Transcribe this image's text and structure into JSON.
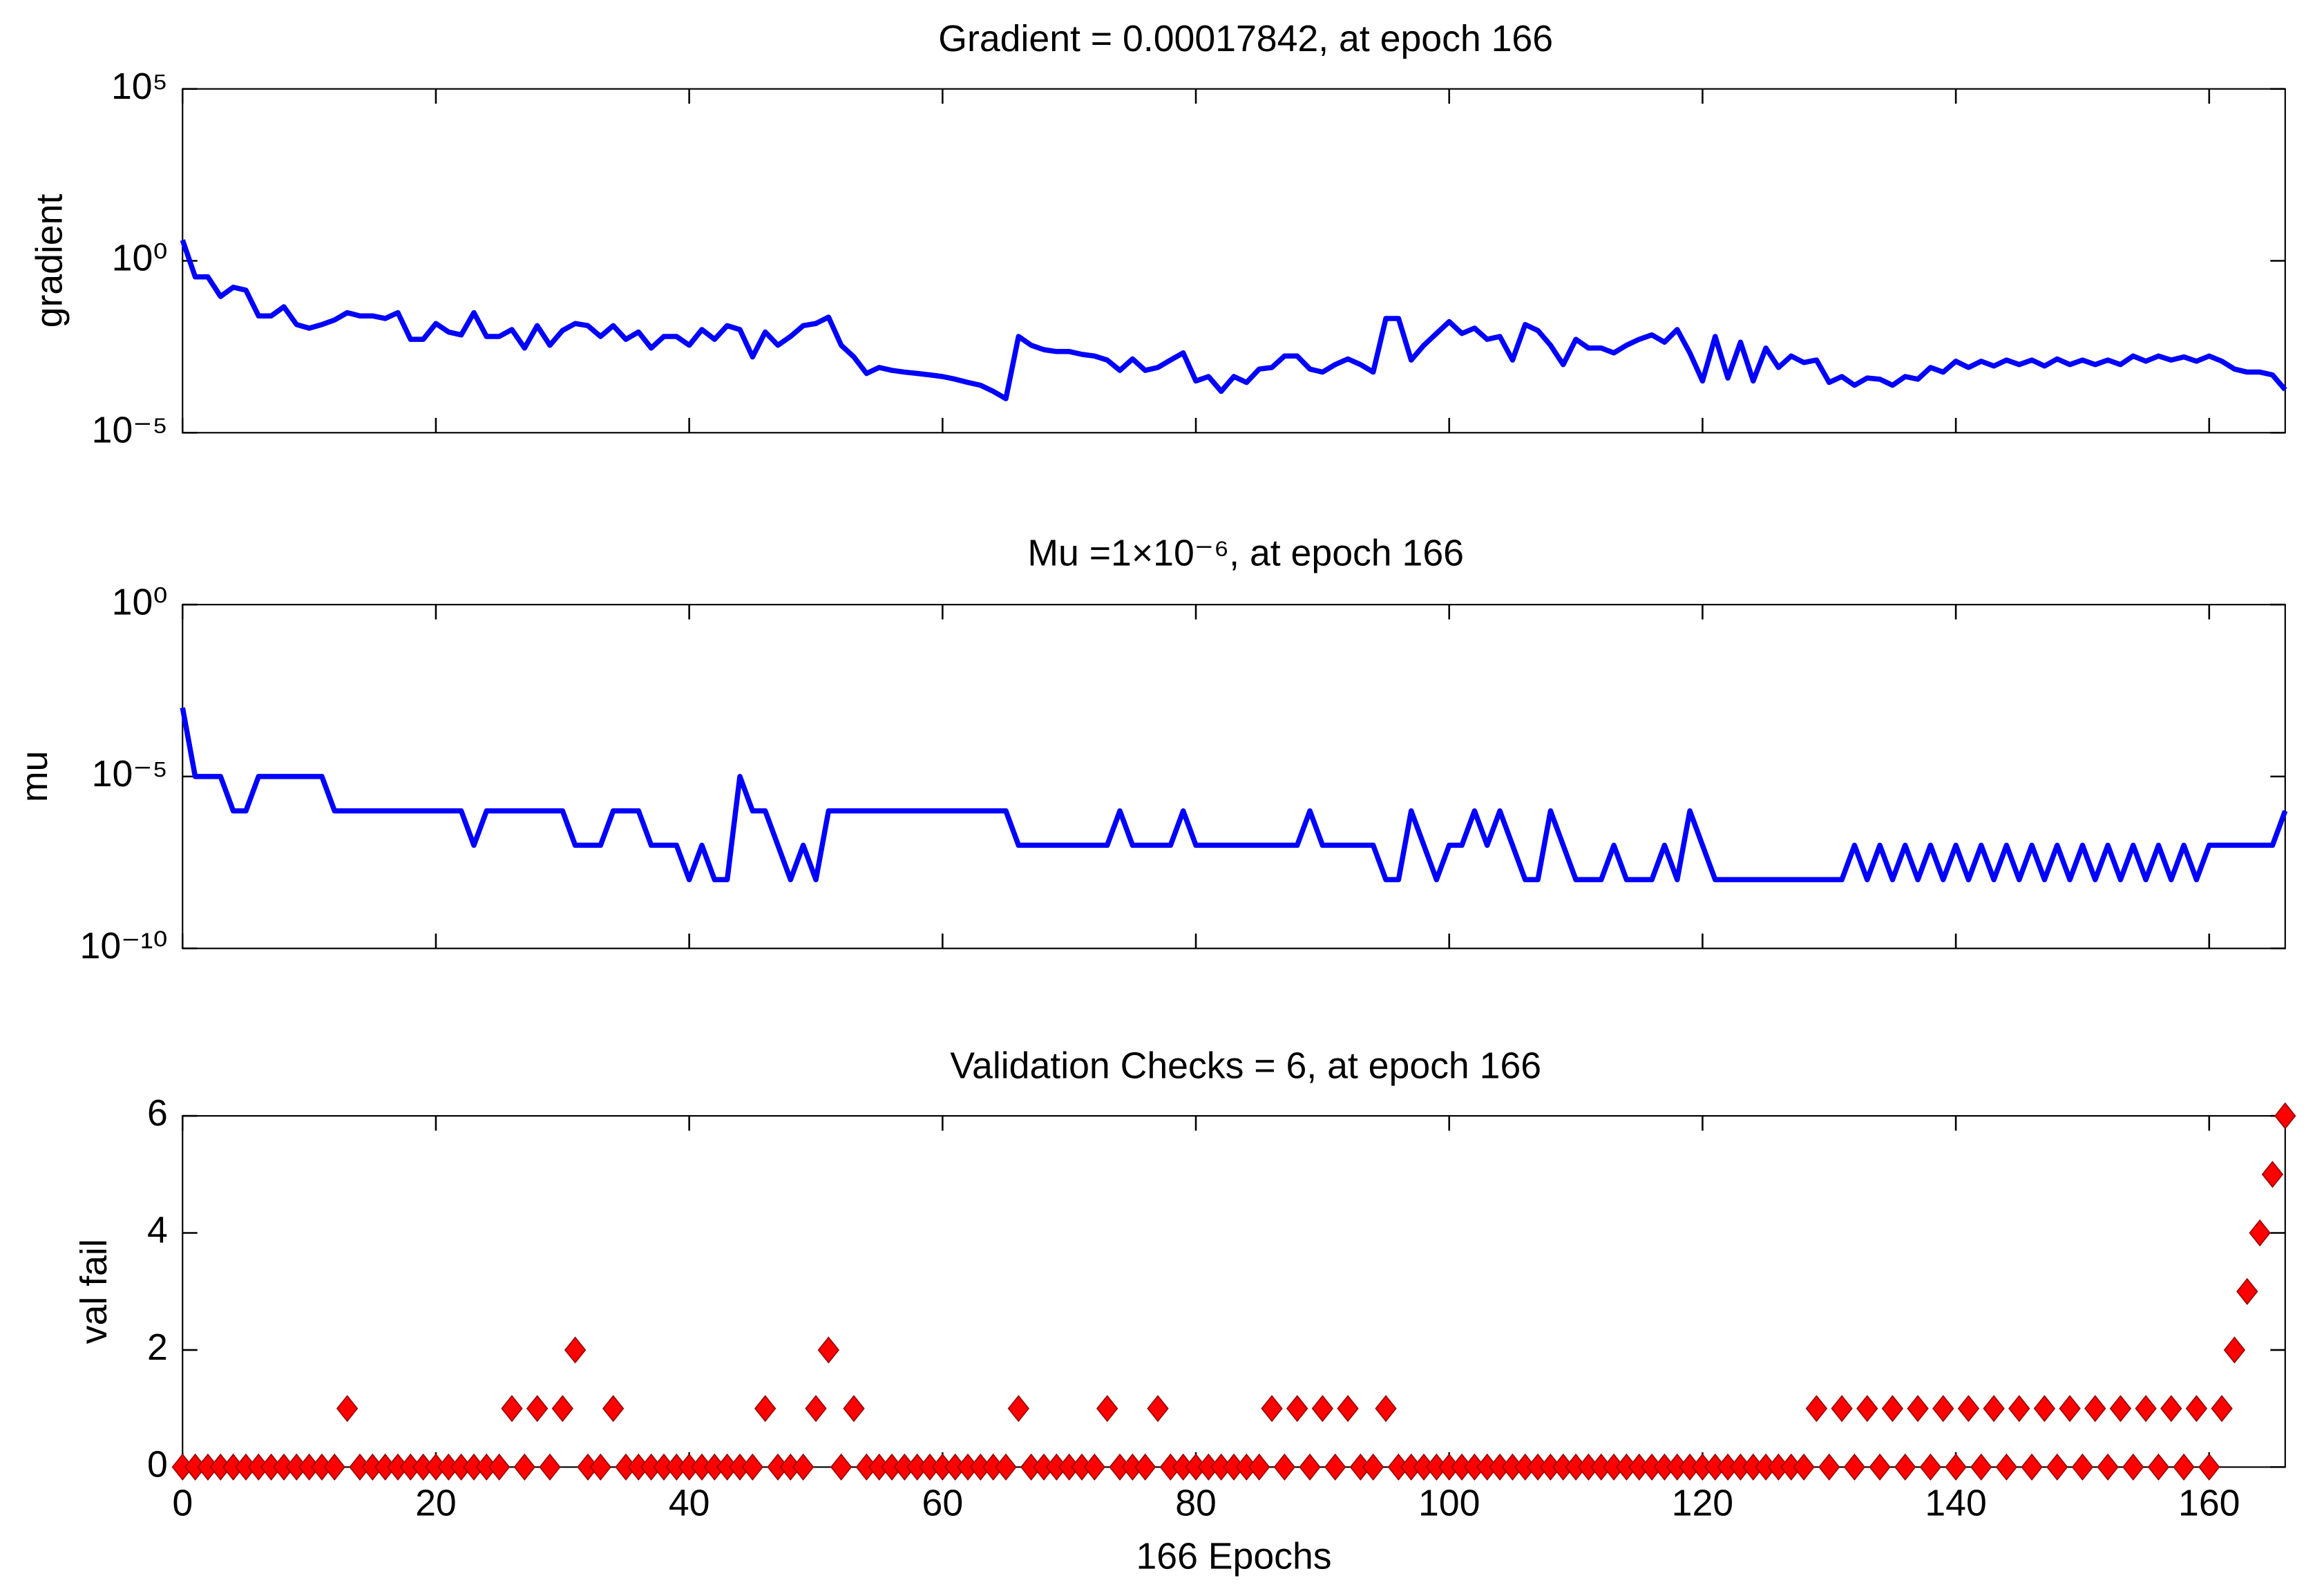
{
  "chart_data": [
    {
      "type": "line",
      "title": "Gradient = 0.00017842, at epoch 166",
      "y_label": "gradient",
      "log_y": true,
      "color": "#0000ff",
      "show_xtick_labels": false,
      "xlim": [
        0,
        166
      ],
      "xticks": [
        0,
        20,
        40,
        60,
        80,
        100,
        120,
        140,
        160
      ],
      "ylim": [
        1e-05,
        100000
      ],
      "yticks": [
        {
          "value": 1e-05,
          "label": "10⁻⁵"
        },
        {
          "value": 1,
          "label": "10⁰"
        },
        {
          "value": 100000,
          "label": "10⁵"
        }
      ],
      "x": [
        0,
        1,
        2,
        3,
        4,
        5,
        6,
        7,
        8,
        9,
        10,
        11,
        12,
        13,
        14,
        15,
        16,
        17,
        18,
        19,
        20,
        21,
        22,
        23,
        24,
        25,
        26,
        27,
        28,
        29,
        30,
        31,
        32,
        33,
        34,
        35,
        36,
        37,
        38,
        39,
        40,
        41,
        42,
        43,
        44,
        45,
        46,
        47,
        48,
        49,
        50,
        51,
        52,
        53,
        54,
        55,
        56,
        57,
        58,
        59,
        60,
        61,
        62,
        63,
        64,
        65,
        66,
        67,
        68,
        69,
        70,
        71,
        72,
        73,
        74,
        75,
        76,
        77,
        78,
        79,
        80,
        81,
        82,
        83,
        84,
        85,
        86,
        87,
        88,
        89,
        90,
        91,
        92,
        93,
        94,
        95,
        96,
        97,
        98,
        99,
        100,
        101,
        102,
        103,
        104,
        105,
        106,
        107,
        108,
        109,
        110,
        111,
        112,
        113,
        114,
        115,
        116,
        117,
        118,
        119,
        120,
        121,
        122,
        123,
        124,
        125,
        126,
        127,
        128,
        129,
        130,
        131,
        132,
        133,
        134,
        135,
        136,
        137,
        138,
        139,
        140,
        141,
        142,
        143,
        144,
        145,
        146,
        147,
        148,
        149,
        150,
        151,
        152,
        153,
        154,
        155,
        156,
        157,
        158,
        159,
        160,
        161,
        162,
        163,
        164,
        165,
        166
      ],
      "values": [
        4.0,
        0.34,
        0.34,
        0.092,
        0.17,
        0.14,
        0.025,
        0.025,
        0.046,
        0.014,
        0.011,
        0.014,
        0.019,
        0.031,
        0.025,
        0.025,
        0.021,
        0.031,
        0.0052,
        0.0052,
        0.015,
        0.0085,
        0.007,
        0.031,
        0.0063,
        0.0063,
        0.01,
        0.0029,
        0.013,
        0.0035,
        0.0094,
        0.015,
        0.013,
        0.0063,
        0.013,
        0.0052,
        0.0085,
        0.0029,
        0.0063,
        0.0063,
        0.0035,
        0.01,
        0.0052,
        0.013,
        0.01,
        0.0016,
        0.0085,
        0.0035,
        0.0063,
        0.013,
        0.015,
        0.023,
        0.0035,
        0.0016,
        0.00053,
        0.00079,
        0.00065,
        0.00058,
        0.00053,
        0.00048,
        0.00043,
        0.00036,
        0.00029,
        0.00024,
        0.00016,
        9.8e-05,
        0.0063,
        0.0035,
        0.0026,
        0.0023,
        0.0023,
        0.0019,
        0.0017,
        0.0013,
        0.00065,
        0.0014,
        0.00065,
        0.00079,
        0.0013,
        0.0021,
        0.00032,
        0.00043,
        0.00016,
        0.00043,
        0.00029,
        0.00071,
        0.00079,
        0.0017,
        0.0017,
        0.00071,
        0.00058,
        0.00096,
        0.0014,
        0.00096,
        0.00058,
        0.021,
        0.021,
        0.0013,
        0.0035,
        0.0077,
        0.017,
        0.0077,
        0.011,
        0.0052,
        0.0063,
        0.0013,
        0.014,
        0.0094,
        0.0035,
        0.00096,
        0.0052,
        0.0029,
        0.0029,
        0.0021,
        0.0035,
        0.0052,
        0.007,
        0.0043,
        0.01,
        0.0021,
        0.00032,
        0.0063,
        0.00039,
        0.0043,
        0.00032,
        0.0029,
        0.00079,
        0.0017,
        0.0011,
        0.0013,
        0.00029,
        0.00043,
        0.00024,
        0.00039,
        0.00036,
        0.00024,
        0.00043,
        0.00036,
        0.00079,
        0.00058,
        0.0012,
        0.00079,
        0.0012,
        0.00087,
        0.0013,
        0.00096,
        0.0013,
        0.00087,
        0.0014,
        0.00096,
        0.0013,
        0.00096,
        0.0013,
        0.00096,
        0.0017,
        0.0012,
        0.0017,
        0.0013,
        0.0016,
        0.0012,
        0.0017,
        0.0012,
        0.00071,
        0.00058,
        0.00058,
        0.00048,
        0.00017842
      ]
    },
    {
      "type": "line",
      "title": "Mu =1×10⁻⁶, at epoch 166",
      "y_label": "mu",
      "log_y": true,
      "color": "#0000ff",
      "show_xtick_labels": false,
      "xlim": [
        0,
        166
      ],
      "xticks": [
        0,
        20,
        40,
        60,
        80,
        100,
        120,
        140,
        160
      ],
      "ylim": [
        1e-10,
        1
      ],
      "yticks": [
        {
          "value": 1e-10,
          "label": "10⁻¹⁰"
        },
        {
          "value": 1e-05,
          "label": "10⁻⁵"
        },
        {
          "value": 1,
          "label": "10⁰"
        }
      ],
      "x": [
        0,
        1,
        2,
        3,
        4,
        5,
        6,
        7,
        8,
        9,
        10,
        11,
        12,
        13,
        14,
        15,
        16,
        17,
        18,
        19,
        20,
        21,
        22,
        23,
        24,
        25,
        26,
        27,
        28,
        29,
        30,
        31,
        32,
        33,
        34,
        35,
        36,
        37,
        38,
        39,
        40,
        41,
        42,
        43,
        44,
        45,
        46,
        47,
        48,
        49,
        50,
        51,
        52,
        53,
        54,
        55,
        56,
        57,
        58,
        59,
        60,
        61,
        62,
        63,
        64,
        65,
        66,
        67,
        68,
        69,
        70,
        71,
        72,
        73,
        74,
        75,
        76,
        77,
        78,
        79,
        80,
        81,
        82,
        83,
        84,
        85,
        86,
        87,
        88,
        89,
        90,
        91,
        92,
        93,
        94,
        95,
        96,
        97,
        98,
        99,
        100,
        101,
        102,
        103,
        104,
        105,
        106,
        107,
        108,
        109,
        110,
        111,
        112,
        113,
        114,
        115,
        116,
        117,
        118,
        119,
        120,
        121,
        122,
        123,
        124,
        125,
        126,
        127,
        128,
        129,
        130,
        131,
        132,
        133,
        134,
        135,
        136,
        137,
        138,
        139,
        140,
        141,
        142,
        143,
        144,
        145,
        146,
        147,
        148,
        149,
        150,
        151,
        152,
        153,
        154,
        155,
        156,
        157,
        158,
        159,
        160,
        161,
        162,
        163,
        164,
        165,
        166
      ],
      "values": [
        0.001,
        1e-05,
        1e-05,
        1e-05,
        1e-06,
        1e-06,
        1e-05,
        1e-05,
        1e-05,
        1e-05,
        1e-05,
        1e-05,
        1e-06,
        1e-06,
        1e-06,
        1e-06,
        1e-06,
        1e-06,
        1e-06,
        1e-06,
        1e-06,
        1e-06,
        1e-06,
        1e-07,
        1e-06,
        1e-06,
        1e-06,
        1e-06,
        1e-06,
        1e-06,
        1e-06,
        1e-07,
        1e-07,
        1e-07,
        1e-06,
        1e-06,
        1e-06,
        1e-07,
        1e-07,
        1e-07,
        1e-08,
        1e-07,
        1e-08,
        1e-08,
        1e-05,
        1e-06,
        1e-06,
        1e-07,
        1e-08,
        1e-07,
        1e-08,
        1e-06,
        1e-06,
        1e-06,
        1e-06,
        1e-06,
        1e-06,
        1e-06,
        1e-06,
        1e-06,
        1e-06,
        1e-06,
        1e-06,
        1e-06,
        1e-06,
        1e-06,
        1e-07,
        1e-07,
        1e-07,
        1e-07,
        1e-07,
        1e-07,
        1e-07,
        1e-07,
        1e-06,
        1e-07,
        1e-07,
        1e-07,
        1e-07,
        1e-06,
        1e-07,
        1e-07,
        1e-07,
        1e-07,
        1e-07,
        1e-07,
        1e-07,
        1e-07,
        1e-07,
        1e-06,
        1e-07,
        1e-07,
        1e-07,
        1e-07,
        1e-07,
        1e-08,
        1e-08,
        1e-06,
        1e-07,
        1e-08,
        1e-07,
        1e-07,
        1e-06,
        1e-07,
        1e-06,
        1e-07,
        1e-08,
        1e-08,
        1e-06,
        1e-07,
        1e-08,
        1e-08,
        1e-08,
        1e-07,
        1e-08,
        1e-08,
        1e-08,
        1e-07,
        1e-08,
        1e-06,
        1e-07,
        1e-08,
        1e-08,
        1e-08,
        1e-08,
        1e-08,
        1e-08,
        1e-08,
        1e-08,
        1e-08,
        1e-08,
        1e-08,
        1e-07,
        1e-08,
        1e-07,
        1e-08,
        1e-07,
        1e-08,
        1e-07,
        1e-08,
        1e-07,
        1e-08,
        1e-07,
        1e-08,
        1e-07,
        1e-08,
        1e-07,
        1e-08,
        1e-07,
        1e-08,
        1e-07,
        1e-08,
        1e-07,
        1e-08,
        1e-07,
        1e-08,
        1e-07,
        1e-08,
        1e-07,
        1e-08,
        1e-07,
        1e-07,
        1e-07,
        1e-07,
        1e-07,
        1e-07,
        1e-06
      ]
    },
    {
      "type": "scatter",
      "title": "Validation Checks = 6, at epoch 166",
      "y_label": "val fail",
      "x_label": "166 Epochs",
      "log_y": false,
      "color": "#ff0000",
      "show_xtick_labels": true,
      "xlim": [
        0,
        166
      ],
      "xticks": [
        0,
        20,
        40,
        60,
        80,
        100,
        120,
        140,
        160
      ],
      "ylim": [
        0,
        6
      ],
      "yticks": [
        0,
        2,
        4,
        6
      ],
      "x": [
        0,
        1,
        2,
        3,
        4,
        5,
        6,
        7,
        8,
        9,
        10,
        11,
        12,
        13,
        14,
        15,
        16,
        17,
        18,
        19,
        20,
        21,
        22,
        23,
        24,
        25,
        26,
        27,
        28,
        29,
        30,
        31,
        32,
        33,
        34,
        35,
        36,
        37,
        38,
        39,
        40,
        41,
        42,
        43,
        44,
        45,
        46,
        47,
        48,
        49,
        50,
        51,
        52,
        53,
        54,
        55,
        56,
        57,
        58,
        59,
        60,
        61,
        62,
        63,
        64,
        65,
        66,
        67,
        68,
        69,
        70,
        71,
        72,
        73,
        74,
        75,
        76,
        77,
        78,
        79,
        80,
        81,
        82,
        83,
        84,
        85,
        86,
        87,
        88,
        89,
        90,
        91,
        92,
        93,
        94,
        95,
        96,
        97,
        98,
        99,
        100,
        101,
        102,
        103,
        104,
        105,
        106,
        107,
        108,
        109,
        110,
        111,
        112,
        113,
        114,
        115,
        116,
        117,
        118,
        119,
        120,
        121,
        122,
        123,
        124,
        125,
        126,
        127,
        128,
        129,
        130,
        131,
        132,
        133,
        134,
        135,
        136,
        137,
        138,
        139,
        140,
        141,
        142,
        143,
        144,
        145,
        146,
        147,
        148,
        149,
        150,
        151,
        152,
        153,
        154,
        155,
        156,
        157,
        158,
        159,
        160,
        161,
        162,
        163,
        164,
        165,
        166
      ],
      "values": [
        0,
        0,
        0,
        0,
        0,
        0,
        0,
        0,
        0,
        0,
        0,
        0,
        0,
        1,
        0,
        0,
        0,
        0,
        0,
        0,
        0,
        0,
        0,
        0,
        0,
        0,
        1,
        0,
        1,
        0,
        1,
        2,
        0,
        0,
        1,
        0,
        0,
        0,
        0,
        0,
        0,
        0,
        0,
        0,
        0,
        0,
        1,
        0,
        0,
        0,
        1,
        2,
        0,
        1,
        0,
        0,
        0,
        0,
        0,
        0,
        0,
        0,
        0,
        0,
        0,
        0,
        1,
        0,
        0,
        0,
        0,
        0,
        0,
        1,
        0,
        0,
        0,
        1,
        0,
        0,
        0,
        0,
        0,
        0,
        0,
        0,
        1,
        0,
        1,
        0,
        1,
        0,
        1,
        0,
        0,
        1,
        0,
        0,
        0,
        0,
        0,
        0,
        0,
        0,
        0,
        0,
        0,
        0,
        0,
        0,
        0,
        0,
        0,
        0,
        0,
        0,
        0,
        0,
        0,
        0,
        0,
        0,
        0,
        0,
        0,
        0,
        0,
        0,
        0,
        1,
        0,
        1,
        0,
        1,
        0,
        1,
        0,
        1,
        0,
        1,
        0,
        1,
        0,
        1,
        0,
        1,
        0,
        1,
        0,
        1,
        0,
        1,
        0,
        1,
        0,
        1,
        0,
        1,
        0,
        1,
        0,
        1,
        2,
        3,
        4,
        5,
        6
      ]
    }
  ]
}
